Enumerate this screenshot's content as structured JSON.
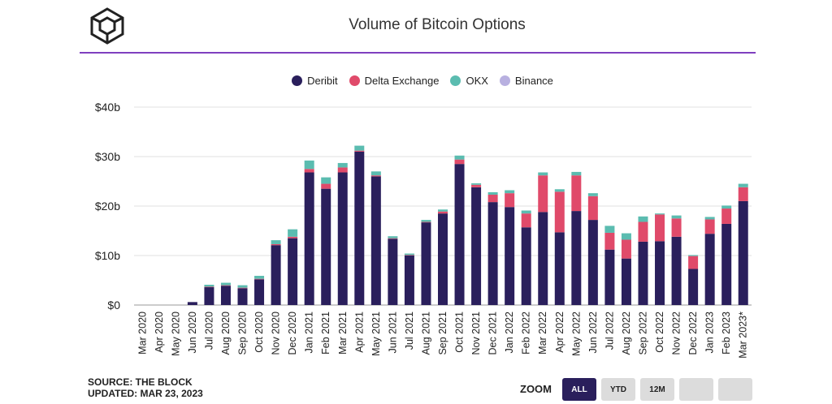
{
  "header": {
    "logo_icon": "cube-icon",
    "title": "Volume of Bitcoin Options"
  },
  "legend": [
    {
      "label": "Deribit",
      "color": "#2a1f5c"
    },
    {
      "label": "Delta Exchange",
      "color": "#e04a6a"
    },
    {
      "label": "OKX",
      "color": "#5bbcb0"
    },
    {
      "label": "Binance",
      "color": "#b8b0e0"
    }
  ],
  "footer": {
    "source": "SOURCE: THE BLOCK",
    "updated": "UPDATED: MAR 23, 2023"
  },
  "zoom": {
    "label": "ZOOM",
    "buttons": [
      "ALL",
      "YTD",
      "12M",
      "",
      ""
    ],
    "selected": "ALL"
  },
  "chart_data": {
    "type": "bar",
    "stacked": true,
    "title": "Volume of Bitcoin Options",
    "ylim": [
      0,
      40
    ],
    "yticks": [
      "$0",
      "$10b",
      "$20b",
      "$30b",
      "$40b"
    ],
    "grid": true,
    "legend_position": "top-center",
    "categories": [
      "Mar 2020",
      "Apr 2020",
      "May 2020",
      "Jun 2020",
      "Jul 2020",
      "Aug 2020",
      "Sep 2020",
      "Oct 2020",
      "Nov 2020",
      "Dec 2020",
      "Jan 2021",
      "Feb 2021",
      "Mar 2021",
      "Apr 2021",
      "May 2021",
      "Jun 2021",
      "Jul 2021",
      "Aug 2021",
      "Sep 2021",
      "Oct 2021",
      "Nov 2021",
      "Dec 2021",
      "Jan 2022",
      "Feb 2022",
      "Mar 2022",
      "Apr 2022",
      "May 2022",
      "Jun 2022",
      "Jul 2022",
      "Aug 2022",
      "Sep 2022",
      "Oct 2022",
      "Nov 2022",
      "Dec 2022",
      "Jan 2023",
      "Feb 2023",
      "Mar 2023*"
    ],
    "series": [
      {
        "name": "Deribit",
        "color": "#2a1f5c",
        "values": [
          0,
          0,
          0,
          0.6,
          3.6,
          3.9,
          3.4,
          5.2,
          12.1,
          13.5,
          26.8,
          23.5,
          26.8,
          31.0,
          26.0,
          13.4,
          10.0,
          16.7,
          18.5,
          28.5,
          23.8,
          20.8,
          19.8,
          15.7,
          18.8,
          14.7,
          19.0,
          17.2,
          11.2,
          9.4,
          12.8,
          12.9,
          13.8,
          7.3,
          14.4,
          16.4,
          21.0
        ]
      },
      {
        "name": "Delta Exchange",
        "color": "#e04a6a",
        "values": [
          0,
          0,
          0,
          0,
          0.1,
          0.1,
          0.1,
          0.1,
          0.2,
          0.3,
          0.7,
          1.0,
          1.0,
          0.2,
          0.2,
          0.1,
          0.1,
          0.1,
          0.4,
          0.9,
          0.5,
          1.5,
          2.8,
          2.8,
          7.4,
          8.2,
          7.2,
          4.8,
          3.4,
          3.8,
          4.0,
          5.4,
          3.7,
          2.6,
          2.9,
          3.1,
          2.8
        ]
      },
      {
        "name": "OKX",
        "color": "#5bbcb0",
        "values": [
          0,
          0,
          0,
          0,
          0.4,
          0.5,
          0.5,
          0.6,
          0.8,
          1.5,
          1.7,
          1.3,
          0.9,
          1.0,
          0.8,
          0.4,
          0.3,
          0.4,
          0.4,
          0.8,
          0.3,
          0.5,
          0.6,
          0.6,
          0.6,
          0.5,
          0.7,
          0.6,
          1.4,
          1.3,
          1.1,
          0.2,
          0.6,
          0.2,
          0.5,
          0.6,
          0.7
        ]
      },
      {
        "name": "Binance",
        "color": "#b8b0e0",
        "values": [
          0,
          0,
          0,
          0,
          0,
          0,
          0,
          0,
          0,
          0,
          0,
          0,
          0,
          0,
          0,
          0,
          0,
          0,
          0,
          0,
          0,
          0,
          0,
          0,
          0,
          0,
          0,
          0,
          0,
          0,
          0,
          0,
          0,
          0,
          0,
          0,
          0
        ]
      }
    ]
  }
}
